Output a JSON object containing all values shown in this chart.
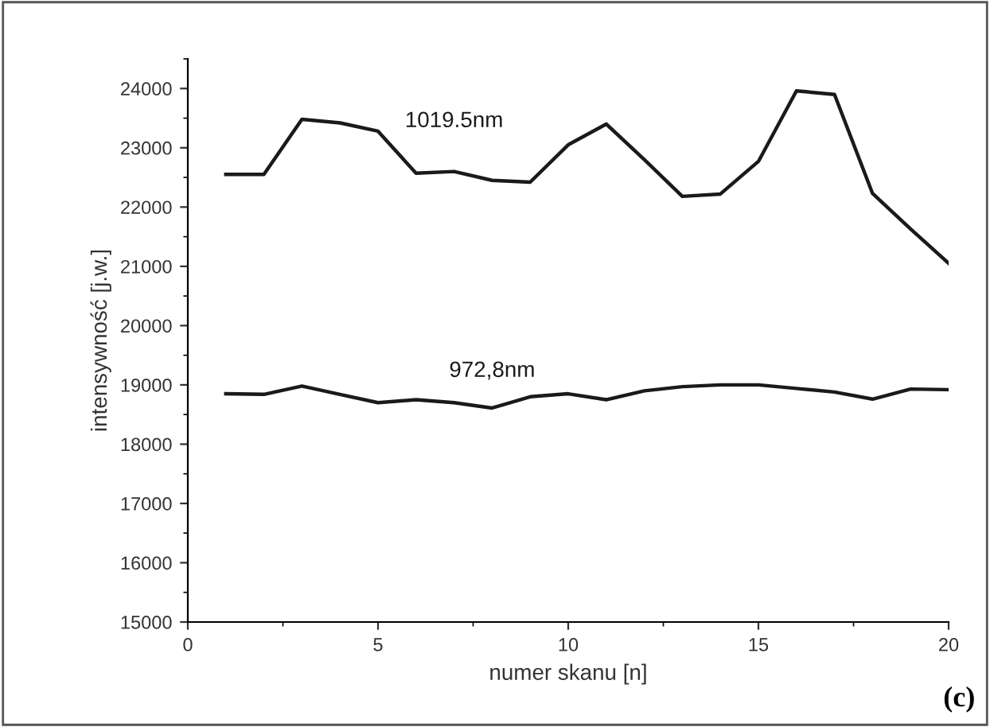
{
  "chart_data": {
    "type": "line",
    "xlabel": "numer skanu [n]",
    "ylabel": "intensywność [j.w.]",
    "x": [
      1,
      2,
      3,
      4,
      5,
      6,
      7,
      8,
      9,
      10,
      11,
      12,
      13,
      14,
      15,
      16,
      17,
      18,
      19,
      20
    ],
    "series": [
      {
        "name": "1019.5nm",
        "color": "#1a1a1a",
        "values": [
          22550,
          22550,
          23480,
          23420,
          23280,
          22570,
          22600,
          22450,
          22420,
          23050,
          23400,
          22800,
          22180,
          22220,
          22770,
          23960,
          23900,
          22230,
          21630,
          21050
        ]
      },
      {
        "name": "972,8nm",
        "color": "#1a1a1a",
        "values": [
          18850,
          18840,
          18980,
          18840,
          18700,
          18750,
          18700,
          18610,
          18800,
          18850,
          18750,
          18900,
          18970,
          19000,
          19000,
          18940,
          18880,
          18760,
          18930,
          18920
        ]
      }
    ],
    "xlim": [
      0,
      20
    ],
    "xticks": [
      0,
      5,
      10,
      15,
      20
    ],
    "ylim": [
      15000,
      24500
    ],
    "yticks": [
      15000,
      16000,
      17000,
      18000,
      19000,
      20000,
      21000,
      22000,
      23000,
      24000
    ],
    "grid": false,
    "legend": false,
    "marker": "none",
    "line_style": "solid",
    "annotations": [
      "(c)"
    ]
  }
}
